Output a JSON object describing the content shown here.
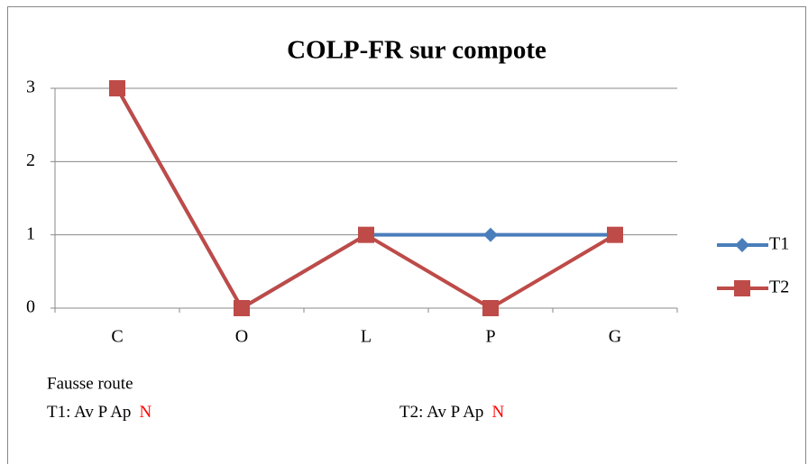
{
  "chart_data": {
    "type": "line",
    "title": "COLP-FR sur compote",
    "categories": [
      "C",
      "O",
      "L",
      "P",
      "G"
    ],
    "series": [
      {
        "name": "T1",
        "color": "#4a7ebb",
        "marker": "diamond",
        "values": [
          3,
          0,
          1,
          1,
          1
        ]
      },
      {
        "name": "T2",
        "color": "#be4b48",
        "marker": "square",
        "values": [
          3,
          0,
          1,
          0,
          1
        ]
      }
    ],
    "ylim": [
      0,
      3
    ],
    "yticks": [
      0,
      1,
      2,
      3
    ],
    "grid": true,
    "legend": "right",
    "annotations": {
      "heading": "Fausse route",
      "highlight_color": "#ff0000",
      "notes": [
        {
          "text": "T1: Av  P  Ap",
          "highlight": "N"
        },
        {
          "text": "T2: Av  P  Ap",
          "highlight": "N"
        }
      ]
    }
  }
}
